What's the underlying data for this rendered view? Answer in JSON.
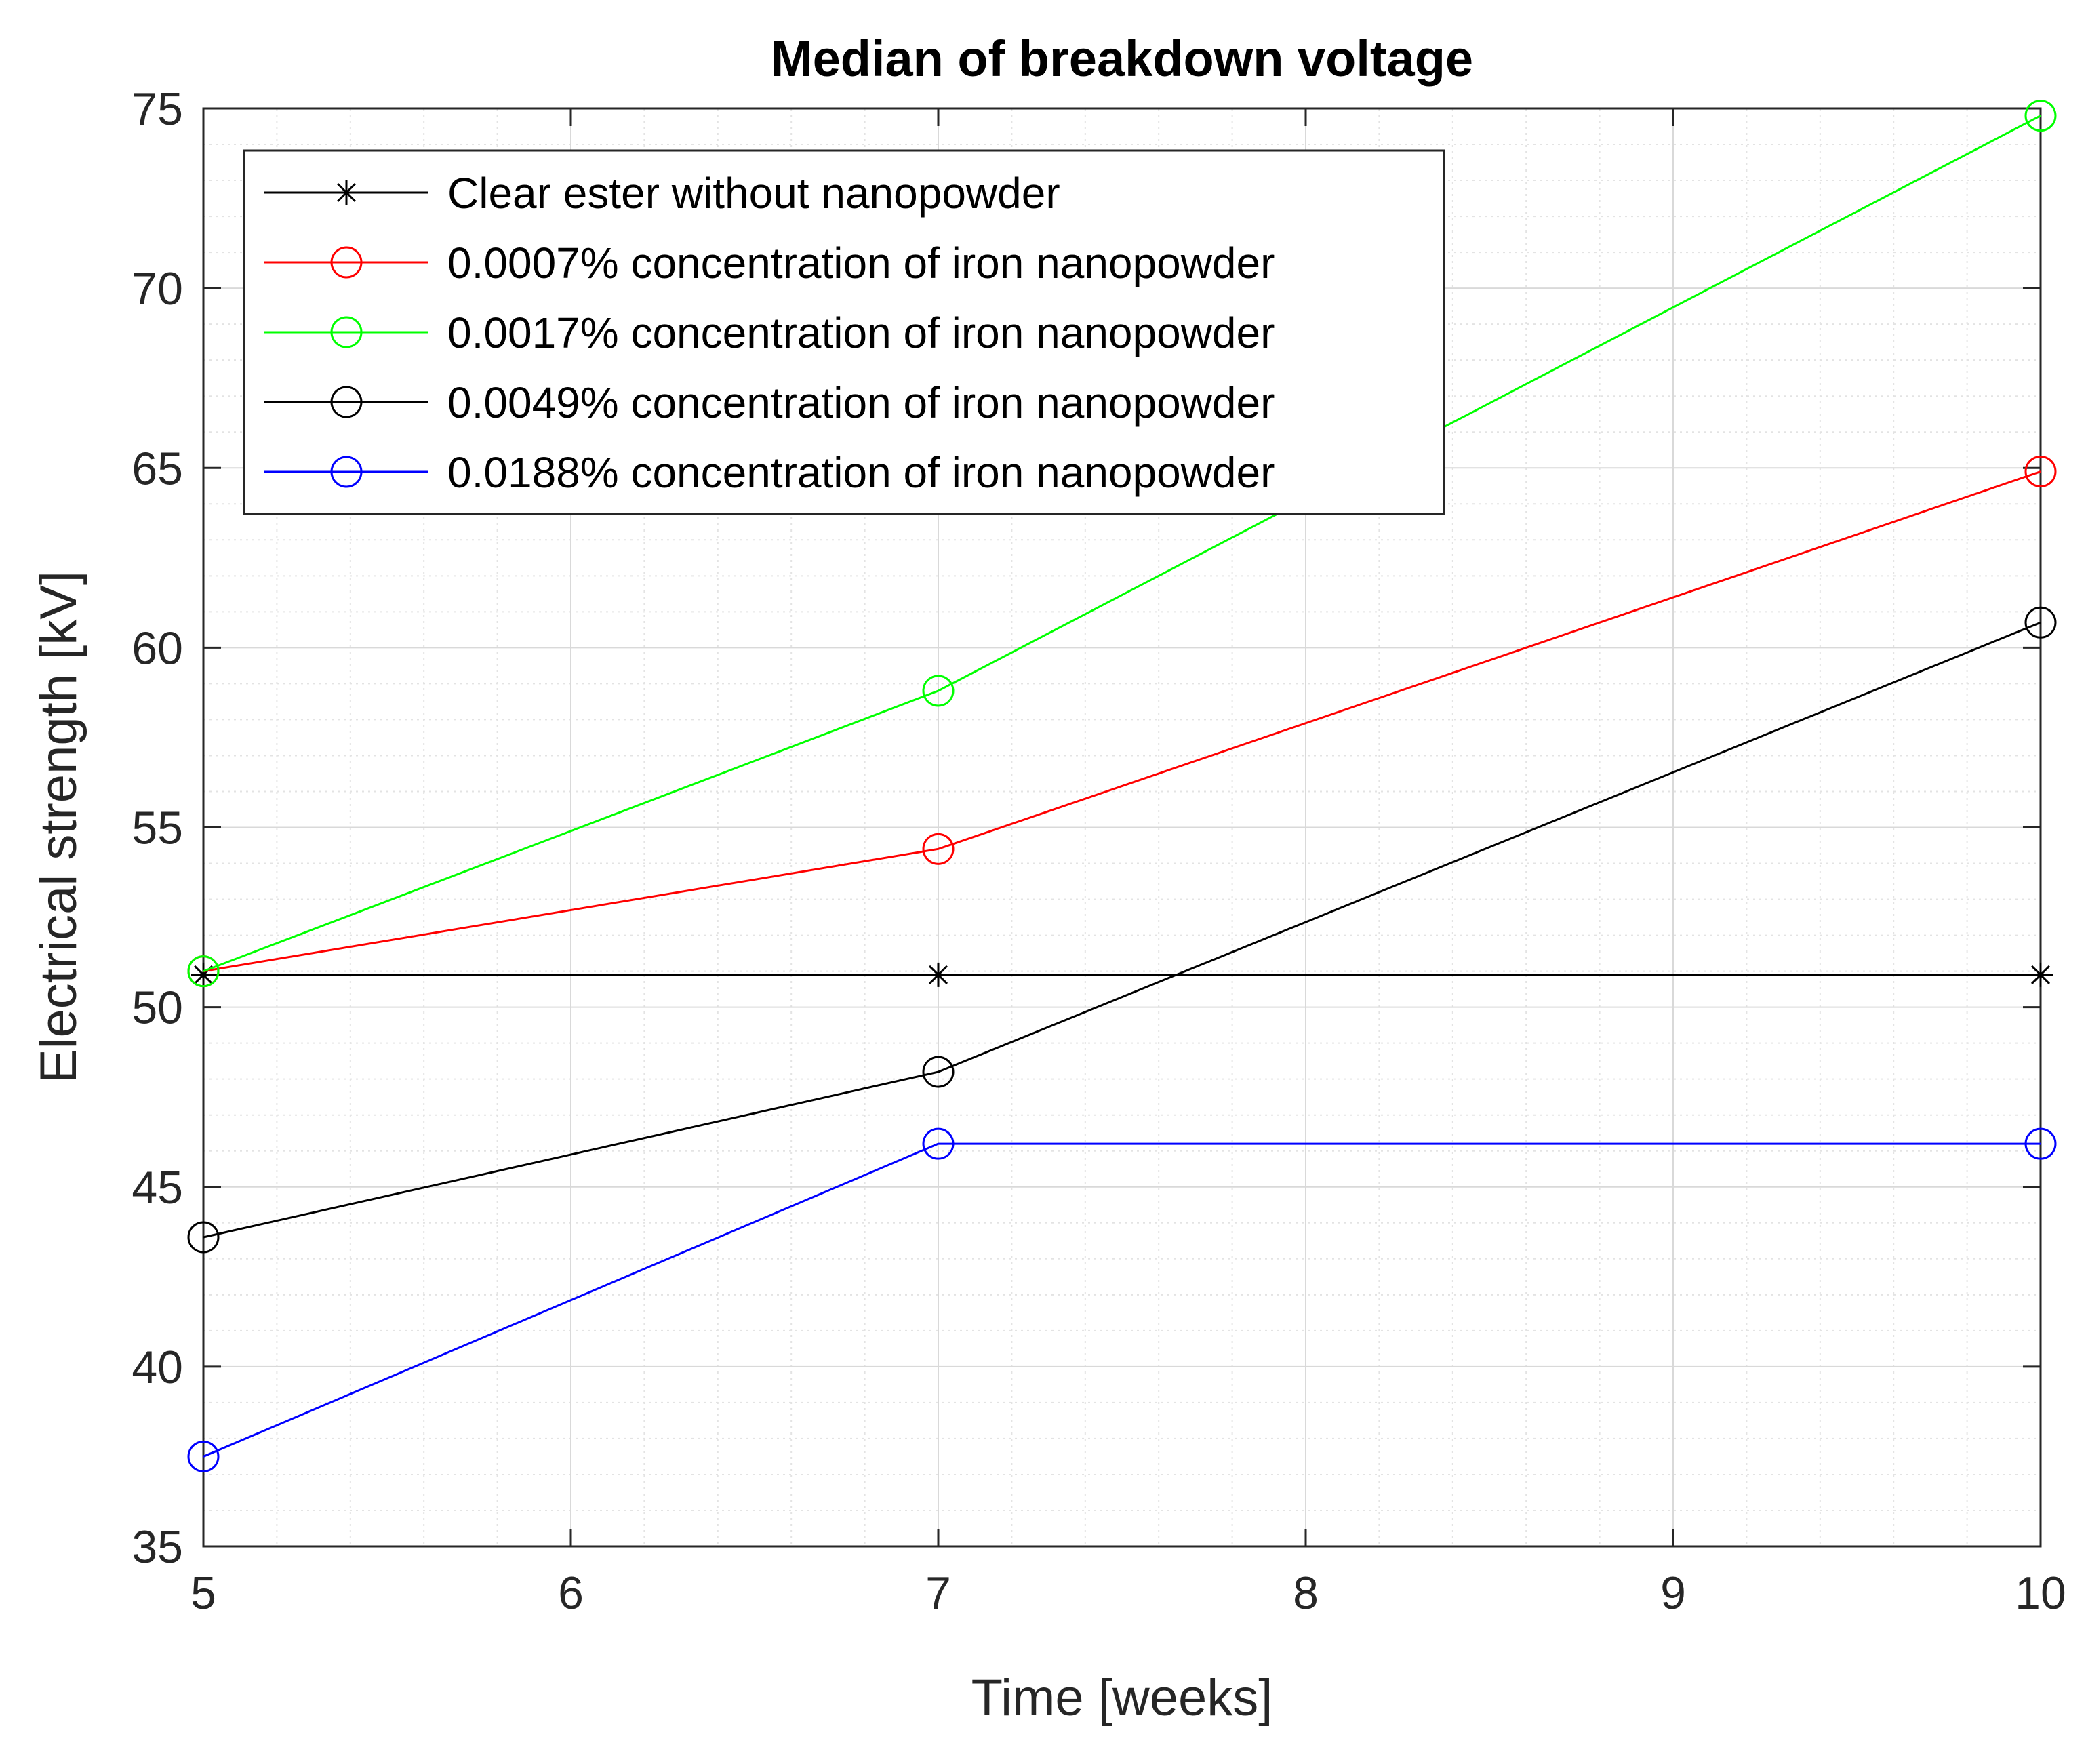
{
  "chart_data": {
    "type": "line",
    "title": "Median of breakdown voltage",
    "xlabel": "Time [weeks]",
    "ylabel": "Electrical strength [kV]",
    "xlim": [
      5,
      10
    ],
    "ylim": [
      35,
      75
    ],
    "xticks": [
      5,
      6,
      7,
      8,
      9,
      10
    ],
    "yticks": [
      35,
      40,
      45,
      50,
      55,
      60,
      65,
      70,
      75
    ],
    "grid": true,
    "minor_grid": true,
    "legend_position": "top-left",
    "x": [
      5,
      7,
      10
    ],
    "series": [
      {
        "name": "Clear ester without nanopowder",
        "color": "#000000",
        "marker": "asterisk",
        "values": [
          50.9,
          50.9,
          50.9
        ]
      },
      {
        "name": "0.0007% concentration of iron nanopowder",
        "color": "#ff0000",
        "marker": "circle",
        "values": [
          51.0,
          54.4,
          64.9
        ]
      },
      {
        "name": "0.0017% concentration of iron nanopowder",
        "color": "#00ff00",
        "marker": "circle",
        "values": [
          51.0,
          58.8,
          74.8
        ]
      },
      {
        "name": "0.0049% concentration of iron nanopowder",
        "color": "#000000",
        "marker": "circle",
        "values": [
          43.6,
          48.2,
          60.7
        ]
      },
      {
        "name": "0.0188% concentration of iron nanopowder",
        "color": "#0000ff",
        "marker": "circle",
        "values": [
          37.5,
          46.2,
          46.2
        ]
      }
    ]
  }
}
